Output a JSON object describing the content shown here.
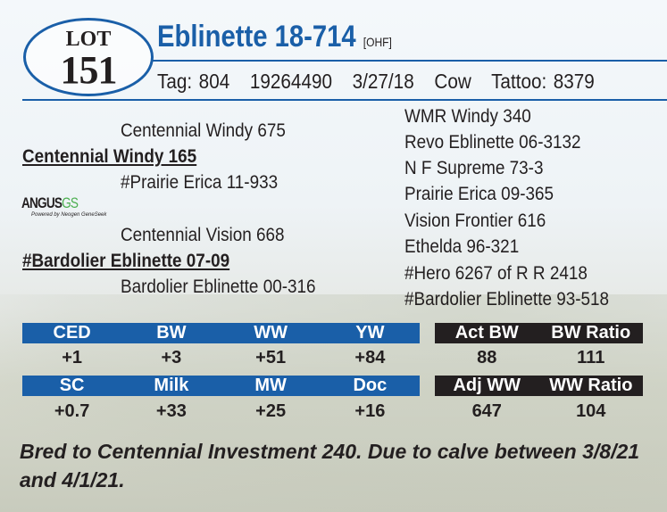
{
  "lot": {
    "label": "LOT",
    "number": "151"
  },
  "animal": {
    "name": "Eblinette 18-714",
    "registry": "[OHF]",
    "tag": "Tag: 804",
    "reg_number": "19264490",
    "birth_date": "3/27/18",
    "sex": "Cow",
    "tattoo": "Tattoo: 8379"
  },
  "pedigree": {
    "left": [
      {
        "name": "Centennial Windy 675"
      },
      {
        "name": "Centennial Windy 165"
      },
      {
        "name": "#Prairie Erica 11-933"
      },
      {
        "name": "Centennial Vision 668"
      },
      {
        "name": "#Bardolier Eblinette 07-09"
      },
      {
        "name": "Bardolier Eblinette 00-316"
      }
    ],
    "right": [
      "WMR Windy 340",
      "Revo Eblinette 06-3132",
      "N F Supreme 73-3",
      "Prairie Erica 09-365",
      "Vision Frontier 616",
      "Ethelda 96-321",
      "#Hero 6267 of R R 2418",
      "#Bardolier Eblinette 93-518"
    ]
  },
  "logo": {
    "text": "ANGUS",
    "suffix": "GS",
    "tagline": "Powered by Neogen GeneSeek"
  },
  "epd": {
    "row1": {
      "headers": [
        "CED",
        "BW",
        "WW",
        "YW"
      ],
      "values": [
        "+1",
        "+3",
        "+51",
        "+84"
      ]
    },
    "row2": {
      "headers": [
        "SC",
        "Milk",
        "MW",
        "Doc"
      ],
      "values": [
        "+0.7",
        "+33",
        "+25",
        "+16"
      ]
    }
  },
  "actual": {
    "row1": {
      "headers": [
        "Act BW",
        "BW Ratio"
      ],
      "values": [
        "88",
        "111"
      ]
    },
    "row2": {
      "headers": [
        "Adj WW",
        "WW Ratio"
      ],
      "values": [
        "647",
        "104"
      ]
    }
  },
  "colors": {
    "brand_blue": "#1a5fa8",
    "dark": "#231f20",
    "angus_green": "#4caf50"
  },
  "footnote": "Bred to Centennial Investment 240. Due to calve between 3/8/21 and 4/1/21."
}
